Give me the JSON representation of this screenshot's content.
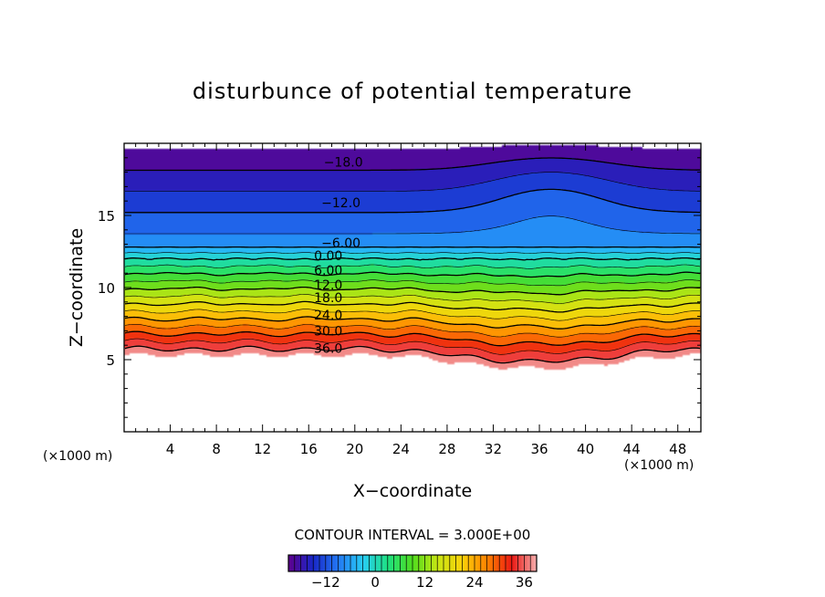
{
  "chart_data": {
    "type": "heatmap",
    "title": "disturbunce of potential temperature",
    "xlabel": "X−coordinate",
    "ylabel": "Z−coordinate",
    "x_unit_left": "(×1000 m)",
    "x_unit_right": "(×1000 m)",
    "xlim": [
      0,
      50
    ],
    "ylim": [
      0,
      20
    ],
    "xticks": [
      4,
      8,
      12,
      16,
      20,
      24,
      28,
      32,
      36,
      40,
      44,
      48
    ],
    "xtick_labels": [
      "4",
      "8",
      "12",
      "16",
      "20",
      "24",
      "28",
      "32",
      "36",
      "40",
      "44",
      "48"
    ],
    "yticks": [
      5,
      10,
      15
    ],
    "ytick_labels": [
      "5",
      "10",
      "15"
    ],
    "contour_interval_text": "CONTOUR INTERVAL = 3.000E+00",
    "contour_interval": 3.0,
    "value_range": [
      -21,
      39
    ],
    "contour_labels": [
      {
        "text": "−18.0",
        "value": -18,
        "x": 19.0,
        "z": 18.7
      },
      {
        "text": "−12.0",
        "value": -12,
        "x": 18.8,
        "z": 15.9
      },
      {
        "text": "−6.00",
        "value": -6,
        "x": 18.8,
        "z": 13.1
      },
      {
        "text": "0.00",
        "value": 0,
        "x": 17.7,
        "z": 12.2
      },
      {
        "text": "6.00",
        "value": 6,
        "x": 17.7,
        "z": 11.2
      },
      {
        "text": "12.0",
        "value": 12,
        "x": 17.7,
        "z": 10.2
      },
      {
        "text": "18.0",
        "value": 18,
        "x": 17.7,
        "z": 9.3
      },
      {
        "text": "24.0",
        "value": 24,
        "x": 17.7,
        "z": 8.1
      },
      {
        "text": "30.0",
        "value": 30,
        "x": 17.7,
        "z": 7.0
      },
      {
        "text": "36.0",
        "value": 36,
        "x": 17.7,
        "z": 5.8
      }
    ],
    "colorbar": {
      "ticks": [
        -12,
        0,
        12,
        24,
        36
      ],
      "tick_labels": [
        "−12",
        "0",
        "12",
        "24",
        "36"
      ],
      "range": [
        -21,
        39
      ]
    },
    "grid": false,
    "legend": "colorbar-bottom"
  }
}
